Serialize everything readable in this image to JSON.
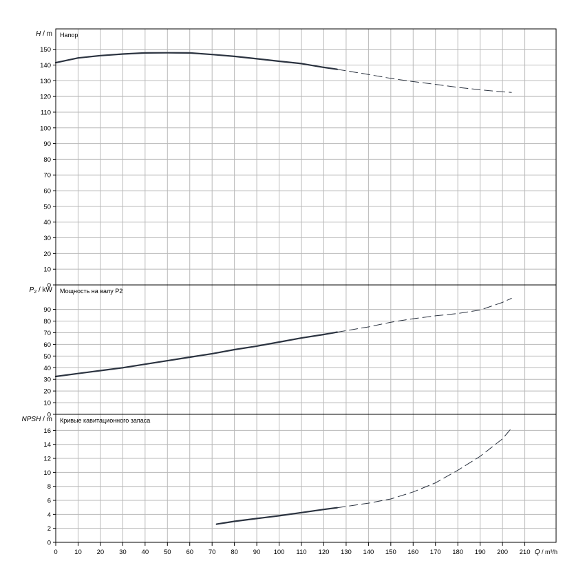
{
  "chart_data": {
    "type": "line",
    "x_axis": {
      "label_var": "Q",
      "label_unit": " / m³/h",
      "range": [
        0,
        224
      ],
      "ticks": [
        0,
        10,
        20,
        30,
        40,
        50,
        60,
        70,
        80,
        90,
        100,
        110,
        120,
        130,
        140,
        150,
        160,
        170,
        180,
        190,
        200,
        210
      ],
      "tick_labels": [
        "0",
        "10",
        "20",
        "30",
        "40",
        "50",
        "60",
        "70",
        "80",
        "90",
        "100",
        "110",
        "120",
        "130",
        "140",
        "150",
        "160",
        "170",
        "180",
        "190",
        "200",
        "210"
      ]
    },
    "grid": true,
    "panels": [
      {
        "title": "Напор",
        "ylabel_var": "H",
        "ylabel_unit": " / m",
        "ylim": [
          0,
          163
        ],
        "yticks": [
          0,
          10,
          20,
          30,
          40,
          50,
          60,
          70,
          80,
          90,
          100,
          110,
          120,
          130,
          140,
          150
        ],
        "ytick_labels": [
          "0",
          "10",
          "20",
          "30",
          "40",
          "50",
          "60",
          "70",
          "80",
          "90",
          "100",
          "110",
          "120",
          "130",
          "140",
          "150"
        ],
        "series": [
          {
            "style": "solid",
            "x": [
              0,
              10,
              20,
              30,
              40,
              50,
              60,
              70,
              80,
              90,
              100,
              110,
              120,
              126
            ],
            "y": [
              141.5,
              144.5,
              146,
              147,
              147.7,
              147.8,
              147.7,
              146.7,
              145.5,
              144,
              142.4,
              140.9,
              138.5,
              137.3
            ]
          },
          {
            "style": "dashed",
            "x": [
              126,
              140,
              150,
              160,
              170,
              180,
              190,
              200,
              204
            ],
            "y": [
              137.3,
              134,
              131.5,
              129.5,
              127.7,
              125.8,
              124.2,
              122.9,
              122.6
            ]
          }
        ]
      },
      {
        "title": "Мощность на валу P2",
        "ylabel_var": "P",
        "ylabel_sub": "2",
        "ylabel_unit": " / kW",
        "ylim": [
          0,
          111
        ],
        "yticks": [
          0,
          10,
          20,
          30,
          40,
          50,
          60,
          70,
          80,
          90
        ],
        "ytick_labels": [
          "0",
          "10",
          "20",
          "30",
          "40",
          "50",
          "60",
          "70",
          "80",
          "90"
        ],
        "series": [
          {
            "style": "solid",
            "x": [
              0,
              10,
              20,
              30,
              40,
              50,
              60,
              70,
              80,
              90,
              100,
              110,
              120,
              126
            ],
            "y": [
              32.5,
              35,
              37.5,
              40,
              43,
              46,
              49,
              52,
              55.5,
              58.5,
              62,
              65.5,
              68.5,
              70.5
            ]
          },
          {
            "style": "dashed",
            "x": [
              126,
              140,
              150,
              160,
              170,
              180,
              190,
              200,
              204
            ],
            "y": [
              70.5,
              75,
              79,
              82,
              84.5,
              86.5,
              89.5,
              96,
              99.5
            ]
          }
        ]
      },
      {
        "title": "Кривые кавитационного запаса",
        "ylabel_var": "NPSH",
        "ylabel_unit": " / m",
        "ylim": [
          0,
          18.3
        ],
        "yticks": [
          0,
          2,
          4,
          6,
          8,
          10,
          12,
          14,
          16
        ],
        "ytick_labels": [
          "0",
          "2",
          "4",
          "6",
          "8",
          "10",
          "12",
          "14",
          "16"
        ],
        "series": [
          {
            "style": "solid",
            "x": [
              72,
              80,
              90,
              100,
              110,
              120,
              126
            ],
            "y": [
              2.6,
              3,
              3.4,
              3.8,
              4.25,
              4.7,
              4.95
            ]
          },
          {
            "style": "dashed",
            "x": [
              126,
              140,
              150,
              160,
              170,
              180,
              190,
              200,
              204
            ],
            "y": [
              4.95,
              5.6,
              6.2,
              7.2,
              8.5,
              10.3,
              12.3,
              14.8,
              16.3
            ]
          }
        ]
      }
    ]
  }
}
